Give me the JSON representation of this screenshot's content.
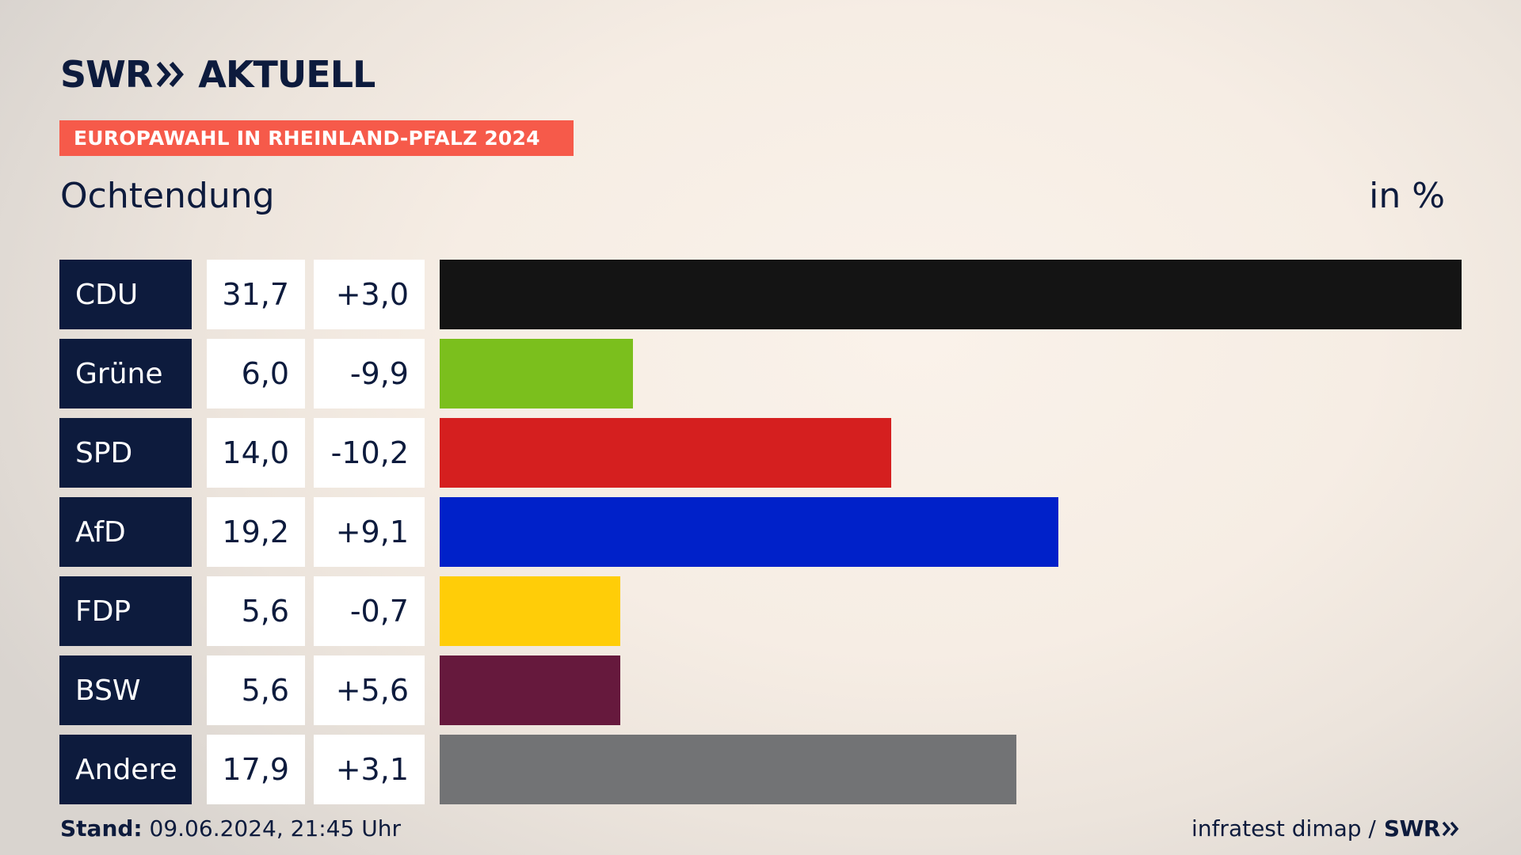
{
  "brand": {
    "logo_main": "SWR",
    "logo_sub": "AKTUELL"
  },
  "header": {
    "banner": "EUROPAWAHL IN RHEINLAND-PFALZ 2024",
    "location": "Ochtendung",
    "unit": "in %"
  },
  "chart_data": {
    "type": "bar",
    "orientation": "horizontal",
    "categories": [
      "CDU",
      "Grüne",
      "SPD",
      "AfD",
      "FDP",
      "BSW",
      "Andere"
    ],
    "values": [
      31.7,
      6.0,
      14.0,
      19.2,
      5.6,
      5.6,
      17.9
    ],
    "value_labels": [
      "31,7",
      "6,0",
      "14,0",
      "19,2",
      "5,6",
      "5,6",
      "17,9"
    ],
    "diff_labels": [
      "+3,0",
      "-9,9",
      "-10,2",
      "+9,1",
      "-0,7",
      "+5,6",
      "+3,1"
    ],
    "colors": [
      "#141414",
      "#7bbf1d",
      "#d51f1f",
      "#0021c9",
      "#ffcd08",
      "#66193d",
      "#727375"
    ],
    "xlim": [
      0,
      31.7
    ],
    "grid": false,
    "legend": "none"
  },
  "footer": {
    "stand_label": "Stand:",
    "stand_value": "09.06.2024, 21:45 Uhr",
    "source": "infratest dimap /",
    "source_logo": "SWR"
  }
}
